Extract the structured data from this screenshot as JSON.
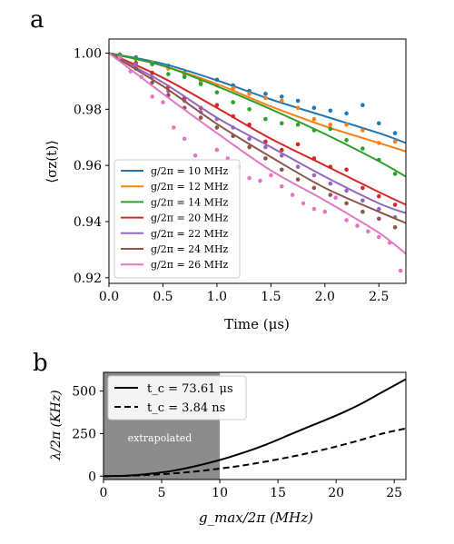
{
  "chart_data": [
    {
      "panel_label": "a",
      "type": "line",
      "title": "",
      "ylabel": "⟨σz(t)⟩",
      "xlabel": "Time (μs)",
      "xlim": [
        0.0,
        2.75
      ],
      "ylim": [
        0.918,
        1.005
      ],
      "x_ticks": [
        "0.0",
        "0.5",
        "1.0",
        "1.5",
        "2.0",
        "2.5"
      ],
      "y_ticks": [
        "0.92",
        "0.94",
        "0.96",
        "0.98",
        "1.00"
      ],
      "legend_position": "lower-left",
      "grid": false,
      "series": [
        {
          "name": "g/2π = 10 MHz",
          "color": "#1f77b4",
          "x": [
            0.0,
            0.5,
            1.0,
            1.5,
            2.0,
            2.5,
            2.75
          ],
          "fit": [
            1.0,
            0.9962,
            0.9903,
            0.9835,
            0.9775,
            0.9715,
            0.968
          ],
          "points_x": [
            0.1,
            0.25,
            0.4,
            0.55,
            0.7,
            0.85,
            1.0,
            1.15,
            1.3,
            1.45,
            1.6,
            1.75,
            1.9,
            2.05,
            2.2,
            2.35,
            2.5,
            2.65
          ],
          "points_y": [
            0.9995,
            0.9985,
            0.9965,
            0.9955,
            0.993,
            0.9905,
            0.9905,
            0.9885,
            0.9865,
            0.9855,
            0.9845,
            0.983,
            0.9805,
            0.9795,
            0.9785,
            0.9815,
            0.975,
            0.9715
          ]
        },
        {
          "name": "g/2π = 12 MHz",
          "color": "#ff7f0e",
          "x": [
            0.0,
            0.5,
            1.0,
            1.5,
            2.0,
            2.5,
            2.75
          ],
          "fit": [
            1.0,
            0.9955,
            0.989,
            0.981,
            0.974,
            0.968,
            0.965
          ],
          "points_x": [
            0.1,
            0.25,
            0.4,
            0.55,
            0.7,
            0.85,
            1.0,
            1.15,
            1.3,
            1.45,
            1.6,
            1.75,
            1.9,
            2.05,
            2.2,
            2.35,
            2.5,
            2.65
          ],
          "points_y": [
            0.9995,
            0.998,
            0.9965,
            0.9945,
            0.9925,
            0.9895,
            0.9885,
            0.9875,
            0.9855,
            0.984,
            0.983,
            0.9805,
            0.9765,
            0.9745,
            0.9745,
            0.9725,
            0.968,
            0.9685
          ]
        },
        {
          "name": "g/2π = 14 MHz",
          "color": "#2ca02c",
          "x": [
            0.0,
            0.5,
            1.0,
            1.5,
            2.0,
            2.5,
            2.75
          ],
          "fit": [
            1.0,
            0.9955,
            0.9882,
            0.98,
            0.9712,
            0.9615,
            0.956
          ],
          "points_x": [
            0.1,
            0.25,
            0.4,
            0.55,
            0.7,
            0.85,
            1.0,
            1.15,
            1.3,
            1.45,
            1.6,
            1.75,
            1.9,
            2.05,
            2.2,
            2.35,
            2.5,
            2.65
          ],
          "points_y": [
            0.9995,
            0.998,
            0.996,
            0.9925,
            0.9915,
            0.989,
            0.986,
            0.9825,
            0.98,
            0.9765,
            0.975,
            0.9745,
            0.9725,
            0.973,
            0.969,
            0.966,
            0.962,
            0.957
          ]
        },
        {
          "name": "g/2π = 20 MHz",
          "color": "#d62728",
          "x": [
            0.0,
            0.5,
            1.0,
            1.5,
            2.0,
            2.5,
            2.75
          ],
          "fit": [
            1.0,
            0.9912,
            0.9805,
            0.9695,
            0.96,
            0.9505,
            0.946
          ],
          "points_x": [
            0.1,
            0.25,
            0.4,
            0.55,
            0.7,
            0.85,
            1.0,
            1.15,
            1.3,
            1.45,
            1.6,
            1.75,
            1.9,
            2.05,
            2.2,
            2.35,
            2.5,
            2.65
          ],
          "points_y": [
            0.9985,
            0.9965,
            0.993,
            0.988,
            0.984,
            0.9805,
            0.9815,
            0.9775,
            0.9745,
            0.9685,
            0.9655,
            0.9675,
            0.9625,
            0.9595,
            0.9585,
            0.952,
            0.949,
            0.946
          ]
        },
        {
          "name": "g/2π = 22 MHz",
          "color": "#9467bd",
          "x": [
            0.0,
            0.5,
            1.0,
            1.5,
            2.0,
            2.5,
            2.75
          ],
          "fit": [
            1.0,
            0.9895,
            0.977,
            0.9665,
            0.956,
            0.9465,
            0.943
          ],
          "points_x": [
            0.1,
            0.25,
            0.4,
            0.55,
            0.7,
            0.85,
            1.0,
            1.15,
            1.3,
            1.45,
            1.6,
            1.75,
            1.9,
            2.05,
            2.2,
            2.35,
            2.5,
            2.65
          ],
          "points_y": [
            0.9985,
            0.996,
            0.9915,
            0.9865,
            0.983,
            0.979,
            0.9765,
            0.9735,
            0.9695,
            0.9665,
            0.9635,
            0.9595,
            0.9565,
            0.9535,
            0.951,
            0.9475,
            0.9445,
            0.9415
          ]
        },
        {
          "name": "g/2π = 24 MHz",
          "color": "#8c564b",
          "x": [
            0.0,
            0.5,
            1.0,
            1.5,
            2.0,
            2.5,
            2.75
          ],
          "fit": [
            1.0,
            0.9882,
            0.9748,
            0.963,
            0.952,
            0.9435,
            0.9395
          ],
          "points_x": [
            0.1,
            0.25,
            0.4,
            0.55,
            0.7,
            0.85,
            1.0,
            1.15,
            1.3,
            1.45,
            1.6,
            1.75,
            1.9,
            2.05,
            2.2,
            2.35,
            2.5,
            2.65
          ],
          "points_y": [
            0.998,
            0.9945,
            0.9895,
            0.985,
            0.9805,
            0.977,
            0.9735,
            0.9705,
            0.9665,
            0.9625,
            0.9585,
            0.955,
            0.952,
            0.9495,
            0.9465,
            0.9435,
            0.941,
            0.938
          ]
        },
        {
          "name": "g/2π = 26 MHz",
          "color": "#e377c2",
          "x": [
            0.0,
            0.5,
            1.0,
            1.5,
            2.0,
            2.5,
            2.75
          ],
          "fit": [
            1.0,
            0.9855,
            0.9715,
            0.9582,
            0.9475,
            0.936,
            0.9285
          ],
          "points_x": [
            0.1,
            0.2,
            0.3,
            0.4,
            0.5,
            0.6,
            0.7,
            0.8,
            0.9,
            1.0,
            1.1,
            1.2,
            1.3,
            1.4,
            1.5,
            1.6,
            1.7,
            1.8,
            1.9,
            2.0,
            2.1,
            2.2,
            2.3,
            2.4,
            2.5,
            2.6,
            2.7
          ],
          "points_y": [
            0.9985,
            0.9935,
            0.9915,
            0.9845,
            0.9825,
            0.9735,
            0.9695,
            0.9635,
            0.9585,
            0.9655,
            0.9625,
            0.9595,
            0.9555,
            0.9545,
            0.9565,
            0.9525,
            0.9495,
            0.9465,
            0.9445,
            0.9435,
            0.9485,
            0.9405,
            0.9385,
            0.9365,
            0.9345,
            0.9325,
            0.9225
          ]
        }
      ]
    },
    {
      "panel_label": "b",
      "type": "line",
      "title": "",
      "ylabel": "λ/2π (KHz)",
      "xlabel": "g_max/2π (MHz)",
      "xlim": [
        0,
        26
      ],
      "ylim": [
        -20,
        610
      ],
      "x_ticks": [
        "0",
        "5",
        "10",
        "15",
        "20",
        "25"
      ],
      "y_ticks": [
        "0",
        "250",
        "500"
      ],
      "legend_position": "top-left",
      "grid": false,
      "shaded_region": {
        "x_range": [
          0,
          10
        ],
        "label": "extrapolated",
        "color": "#8c8c8c"
      },
      "series": [
        {
          "name": "t_c = 73.61 μs",
          "style": "solid",
          "color": "#000000",
          "x": [
            0,
            2,
            4,
            6,
            8,
            10,
            12,
            14,
            16,
            18,
            20,
            22,
            24,
            26
          ],
          "values": [
            0,
            3,
            14,
            32,
            60,
            95,
            137,
            186,
            243,
            300,
            356,
            420,
            495,
            570
          ]
        },
        {
          "name": "t_c = 3.84 ns",
          "style": "dashed",
          "color": "#000000",
          "x": [
            0,
            2,
            4,
            6,
            8,
            10,
            12,
            14,
            16,
            18,
            20,
            22,
            24,
            26
          ],
          "values": [
            0,
            2,
            7,
            16,
            28,
            44,
            63,
            86,
            112,
            141,
            174,
            210,
            250,
            280
          ]
        }
      ]
    }
  ]
}
